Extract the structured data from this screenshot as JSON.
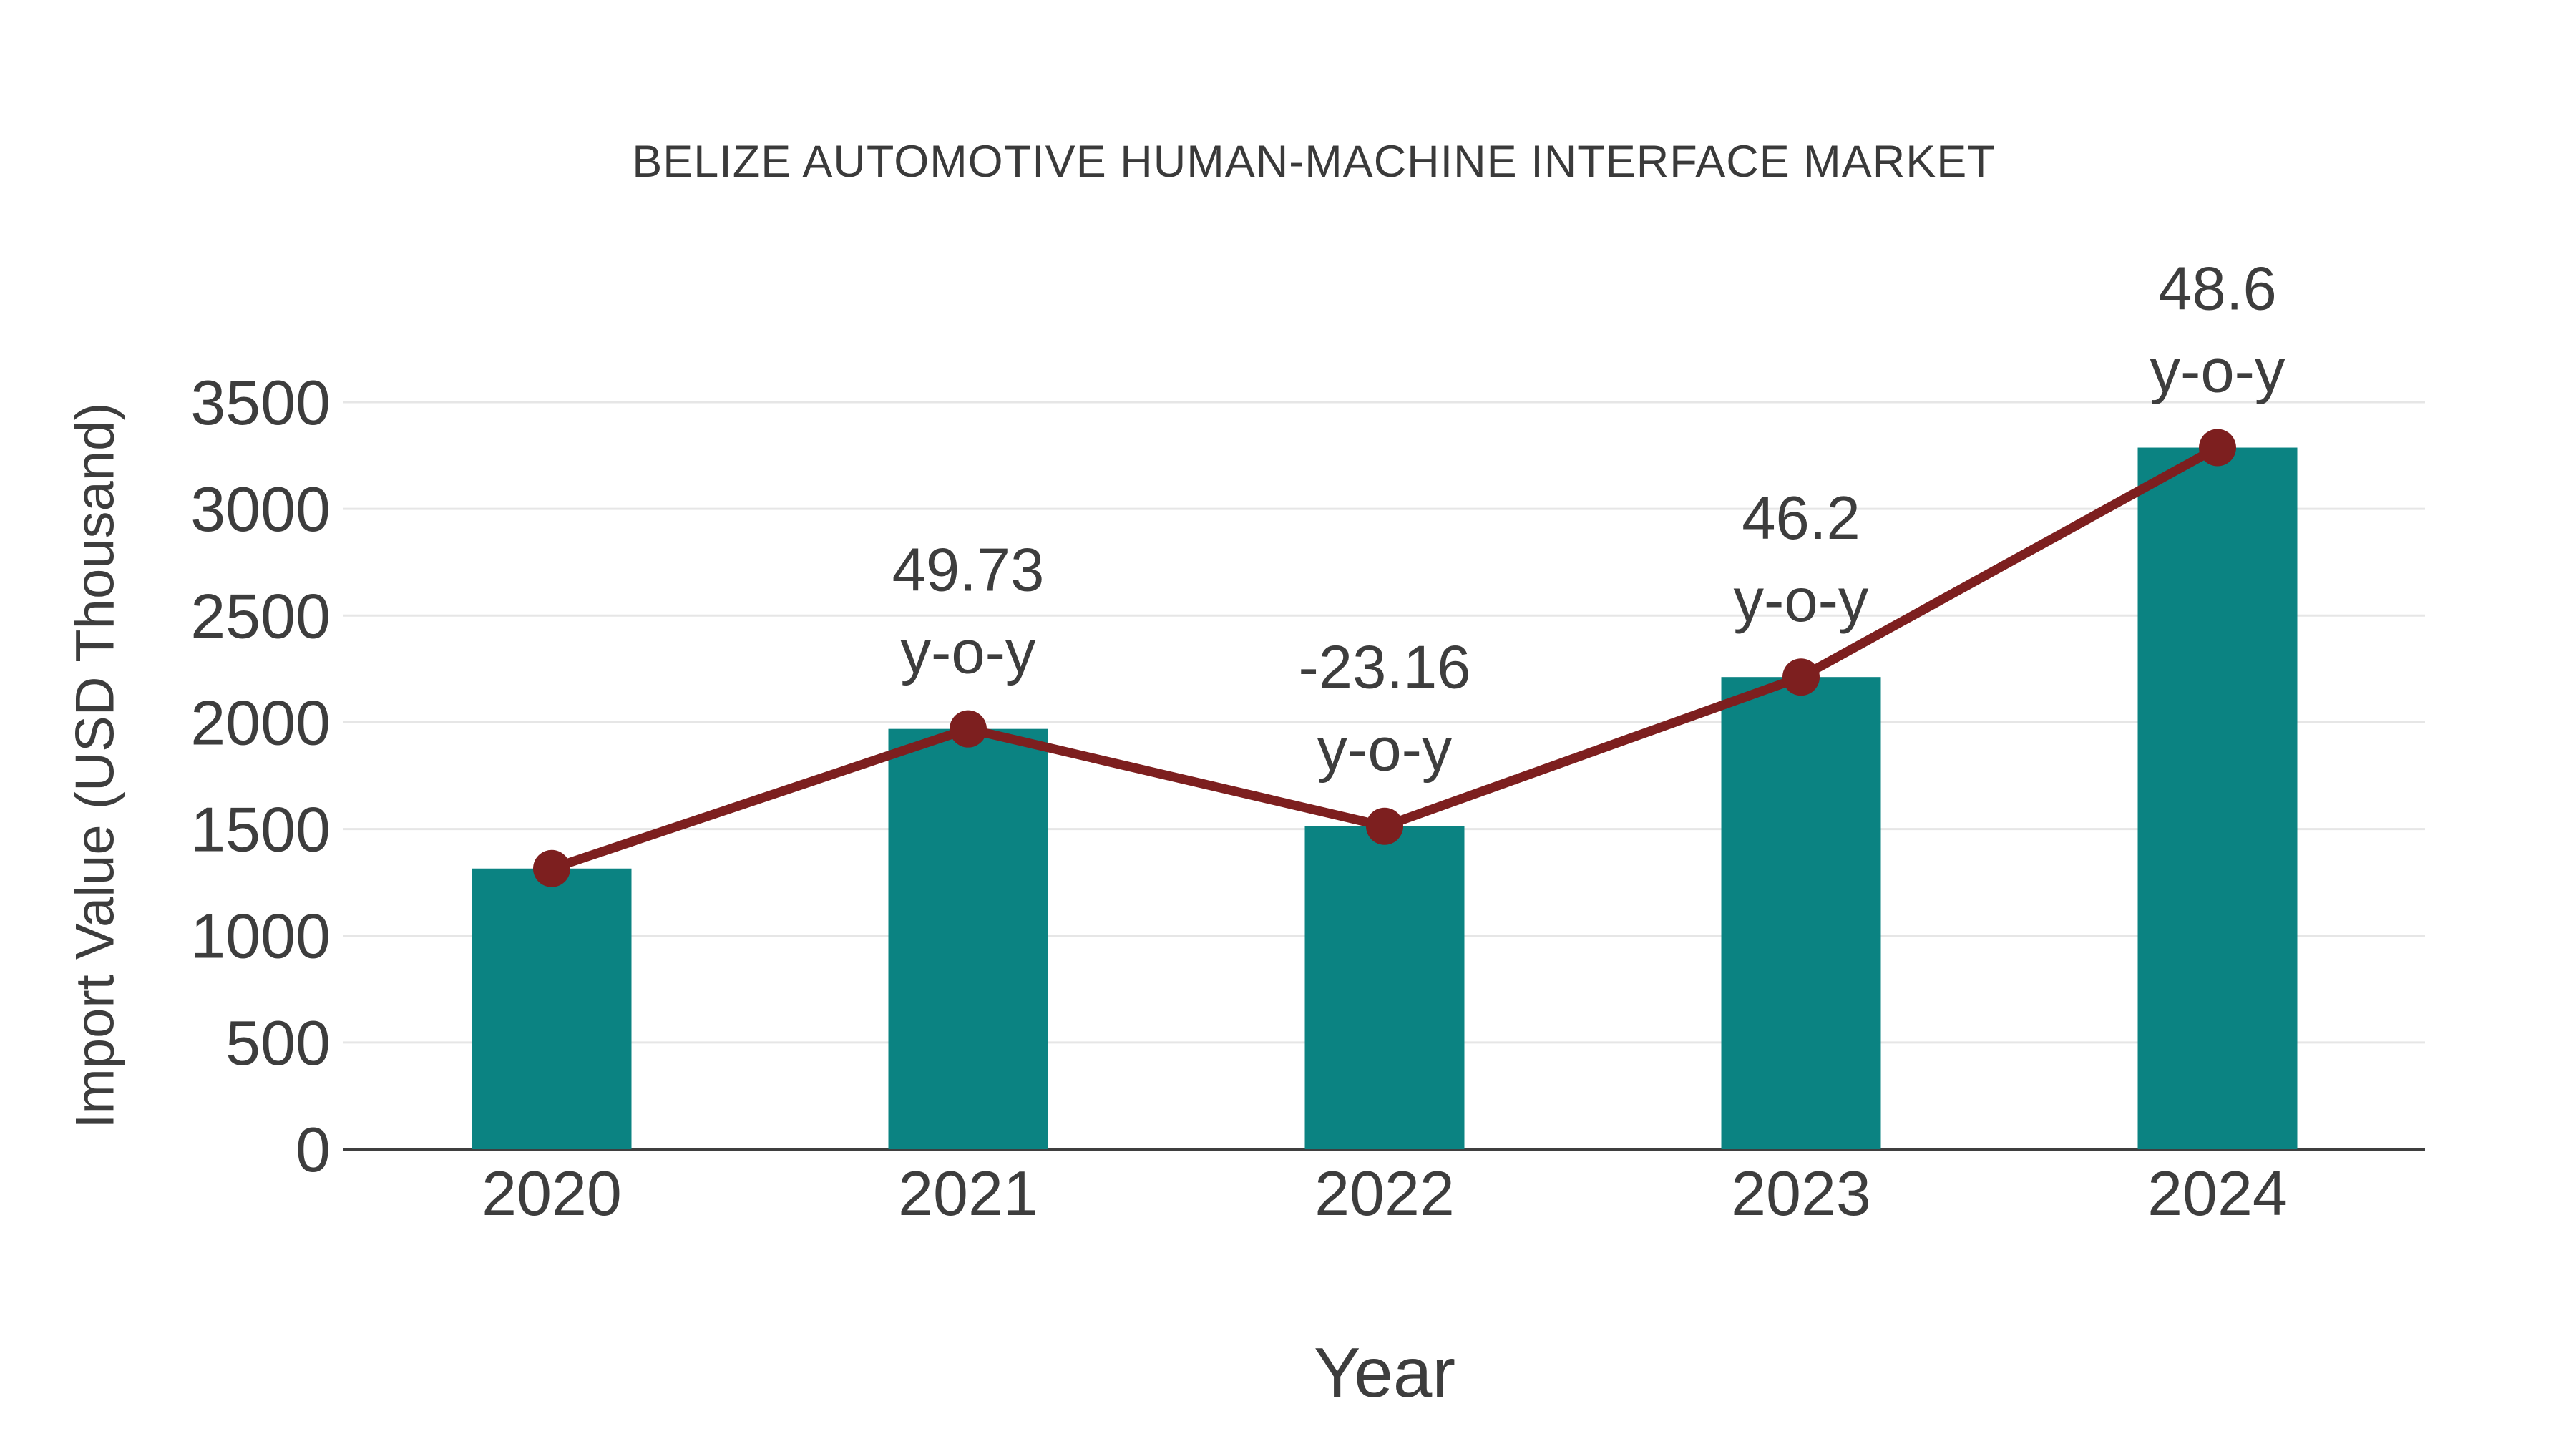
{
  "chart_data": {
    "type": "bar",
    "title": "BELIZE AUTOMOTIVE HUMAN-MACHINE INTERFACE MARKET",
    "xlabel": "Year",
    "ylabel": "Import Value (USD Thousand)",
    "categories": [
      "2020",
      "2021",
      "2022",
      "2023",
      "2024"
    ],
    "series": [
      {
        "name": "import-value-bars",
        "type": "bar",
        "values": [
          1315,
          1969,
          1513,
          2212,
          3287
        ]
      },
      {
        "name": "import-value-trend",
        "type": "line",
        "values": [
          1315,
          1969,
          1513,
          2212,
          3287
        ]
      }
    ],
    "annotations": [
      {
        "category": "2021",
        "value": "49.73",
        "suffix": "y-o-y"
      },
      {
        "category": "2022",
        "value": "-23.16",
        "suffix": "y-o-y"
      },
      {
        "category": "2023",
        "value": "46.2",
        "suffix": "y-o-y"
      },
      {
        "category": "2024",
        "value": "48.6",
        "suffix": "y-o-y"
      }
    ],
    "yticks": [
      0,
      500,
      1000,
      1500,
      2000,
      2500,
      3000,
      3500
    ],
    "ylim": [
      0,
      3500
    ],
    "grid": true,
    "legend": "none",
    "colors": {
      "bar": "#0b8382",
      "line": "#7d1f1f",
      "marker": "#7d1f1f",
      "grid": "#e6e6e6",
      "axis_line": "#3f3f3f",
      "text": "#3d3d3d"
    }
  }
}
